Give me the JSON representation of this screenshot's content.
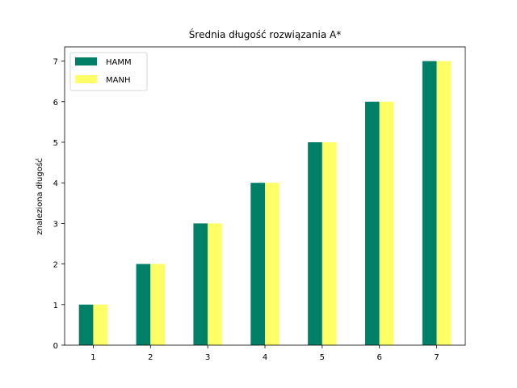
{
  "chart_data": {
    "type": "bar",
    "title": "Średnia długość rozwiązania A*",
    "xlabel": "",
    "ylabel": "znaleziona długość",
    "categories": [
      "1",
      "2",
      "3",
      "4",
      "5",
      "6",
      "7"
    ],
    "series": [
      {
        "name": "HAMM",
        "values": [
          1,
          2,
          3,
          4,
          5,
          6,
          7
        ],
        "color": "#008066"
      },
      {
        "name": "MANH",
        "values": [
          1,
          2,
          3,
          4,
          5,
          6,
          7
        ],
        "color": "#ffff66"
      }
    ],
    "ylim": [
      0,
      7.35
    ],
    "yticks": [
      0,
      1,
      2,
      3,
      4,
      5,
      6,
      7
    ],
    "grid": false,
    "legend_position": "top-left"
  }
}
